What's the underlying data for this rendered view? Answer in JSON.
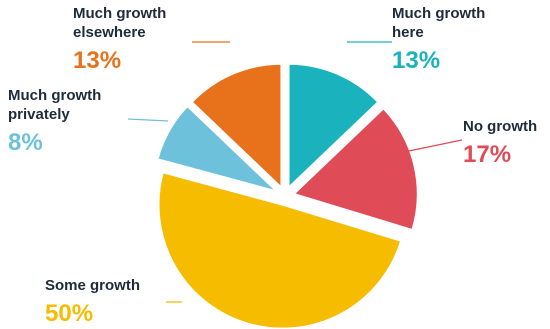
{
  "chart_data": {
    "type": "pie",
    "title": "",
    "slices": [
      {
        "label_lines": [
          "Much growth",
          "here"
        ],
        "value": 13,
        "value_label": "13%",
        "color": "#1ab3bd"
      },
      {
        "label_lines": [
          "No growth"
        ],
        "value": 17,
        "value_label": "17%",
        "color": "#e04b58"
      },
      {
        "label_lines": [
          "Some growth"
        ],
        "value": 50,
        "value_label": "50%",
        "color": "#f5bc00"
      },
      {
        "label_lines": [
          "Much growth",
          "privately"
        ],
        "value": 8,
        "value_label": "8%",
        "color": "#6ec1da"
      },
      {
        "label_lines": [
          "Much growth",
          "elsewhere"
        ],
        "value": 13,
        "value_label": "13%",
        "color": "#e8711c"
      }
    ],
    "label_text_color": "#1f2b3a",
    "separator_color": "#ffffff"
  }
}
